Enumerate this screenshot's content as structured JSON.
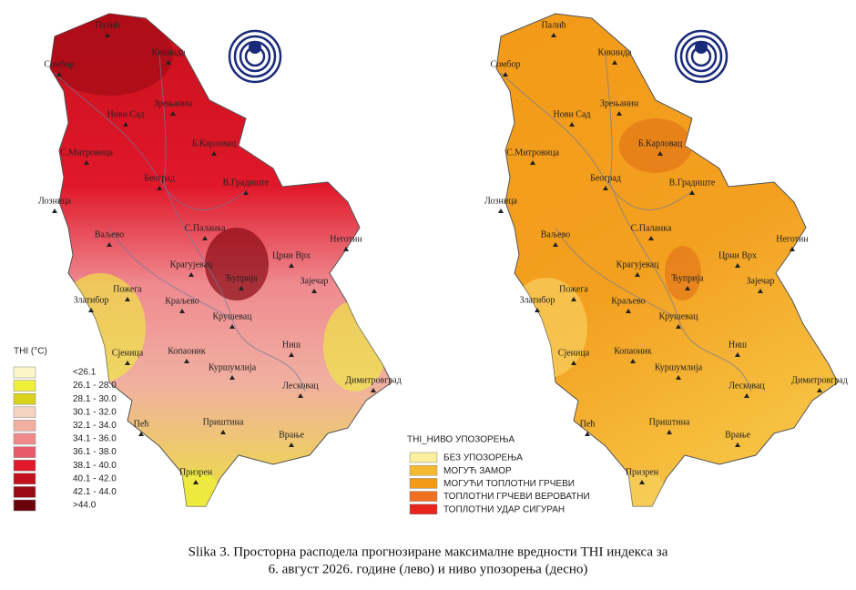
{
  "left_legend": {
    "title": "THI (°C)",
    "items": [
      {
        "label": "<26.1",
        "color": "#fbf6c8"
      },
      {
        "label": "26.1 - 28.0",
        "color": "#eef03a"
      },
      {
        "label": "28.1 - 30.0",
        "color": "#d9d21a"
      },
      {
        "label": "30.1 - 32.0",
        "color": "#f6d4c2"
      },
      {
        "label": "32.1 - 34.0",
        "color": "#f3b09e"
      },
      {
        "label": "34.1 - 36.0",
        "color": "#f08a8a"
      },
      {
        "label": "36.1 - 38.0",
        "color": "#e85a6a"
      },
      {
        "label": "38.1 - 40.0",
        "color": "#e0182a"
      },
      {
        "label": "40.1 - 42.0",
        "color": "#c40f1e"
      },
      {
        "label": "42.1 - 44.0",
        "color": "#9a0a14"
      },
      {
        "label": ">44.0",
        "color": "#6a040a"
      }
    ]
  },
  "right_legend": {
    "title": "THI_НИВО УПОЗОРЕЊА",
    "items": [
      {
        "label": "БЕЗ УПОЗОРЕЊА",
        "color": "#f9ef9c"
      },
      {
        "label": "МОГУЋ ЗАМОР",
        "color": "#f6b830"
      },
      {
        "label": "МОГУЋИ ТОПЛОТНИ ГРЧЕВИ",
        "color": "#f39a18"
      },
      {
        "label": "ТОПЛОТНИ ГРЧЕВИ ВЕРОВАТНИ",
        "color": "#ee7020"
      },
      {
        "label": "ТОПЛОТНИ УДАР СИГУРАН",
        "color": "#e8251c"
      }
    ]
  },
  "cities": [
    "Палић",
    "Кикинда",
    "Сомбор",
    "Нови Сад",
    "Зрењанин",
    "Б.Карловац",
    "С.Митровица",
    "Београд",
    "В.Градиште",
    "Лозница",
    "Ваљево",
    "С.Паланка",
    "Неготин",
    "Крагујевац",
    "Ћуприја",
    "Црни Врх",
    "Зајечар",
    "Пожега",
    "Златибор",
    "Краљево",
    "Крушевац",
    "Сјеница",
    "Копаоник",
    "Ниш",
    "Куршумлија",
    "Лесковац",
    "Димитровград",
    "Пећ",
    "Приштина",
    "Врање",
    "Призрен"
  ],
  "caption": [
    "Slika 3. Просторна расподела прогнозиране максималне вредности THI индекса за",
    "6. август 2026. године (лево) и ниво упозорења (десно)"
  ]
}
